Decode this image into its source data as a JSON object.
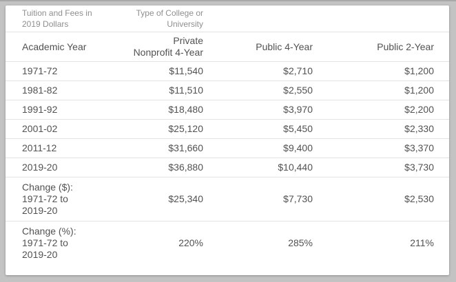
{
  "colors": {
    "frame_gray": "#c3c3c3",
    "frame_top_edge": "#a8a8a8",
    "card_background": "#ffffff",
    "separator": "#e2e2e2",
    "meta_text": "#8f8f8f",
    "body_text": "#515151"
  },
  "chart_data": {
    "type": "table",
    "title": "Tuition and Fees in 2019 Dollars",
    "subtitle": "Type of College or University",
    "columns": [
      "Academic Year",
      "Private Nonprofit 4-Year",
      "Public 4-Year",
      "Public 2-Year"
    ],
    "rows": [
      {
        "label": "1971-72",
        "values": [
          "$11,540",
          "$2,710",
          "$1,200"
        ]
      },
      {
        "label": "1981-82",
        "values": [
          "$11,510",
          "$2,550",
          "$1,200"
        ]
      },
      {
        "label": "1991-92",
        "values": [
          "$18,480",
          "$3,970",
          "$2,200"
        ]
      },
      {
        "label": "2001-02",
        "values": [
          "$25,120",
          "$5,450",
          "$2,330"
        ]
      },
      {
        "label": "2011-12",
        "values": [
          "$31,660",
          "$9,400",
          "$3,370"
        ]
      },
      {
        "label": "2019-20",
        "values": [
          "$36,880",
          "$10,440",
          "$3,730"
        ]
      },
      {
        "label": "Change ($): 1971-72 to 2019-20",
        "values": [
          "$25,340",
          "$7,730",
          "$2,530"
        ]
      },
      {
        "label": "Change (%): 1971-72 to 2019-20",
        "values": [
          "220%",
          "285%",
          "211%"
        ]
      }
    ],
    "numeric": {
      "categories": [
        "1971-72",
        "1981-82",
        "1991-92",
        "2001-02",
        "2011-12",
        "2019-20"
      ],
      "series": [
        {
          "name": "Private Nonprofit 4-Year",
          "values": [
            11540,
            11510,
            18480,
            25120,
            31660,
            36880
          ]
        },
        {
          "name": "Public 4-Year",
          "values": [
            2710,
            2550,
            3970,
            5450,
            9400,
            10440
          ]
        },
        {
          "name": "Public 2-Year",
          "values": [
            1200,
            1200,
            2200,
            2330,
            3370,
            3730
          ]
        }
      ],
      "change_dollars": [
        25340,
        7730,
        2530
      ],
      "change_percent": [
        "220%",
        "285%",
        "211%"
      ]
    }
  }
}
